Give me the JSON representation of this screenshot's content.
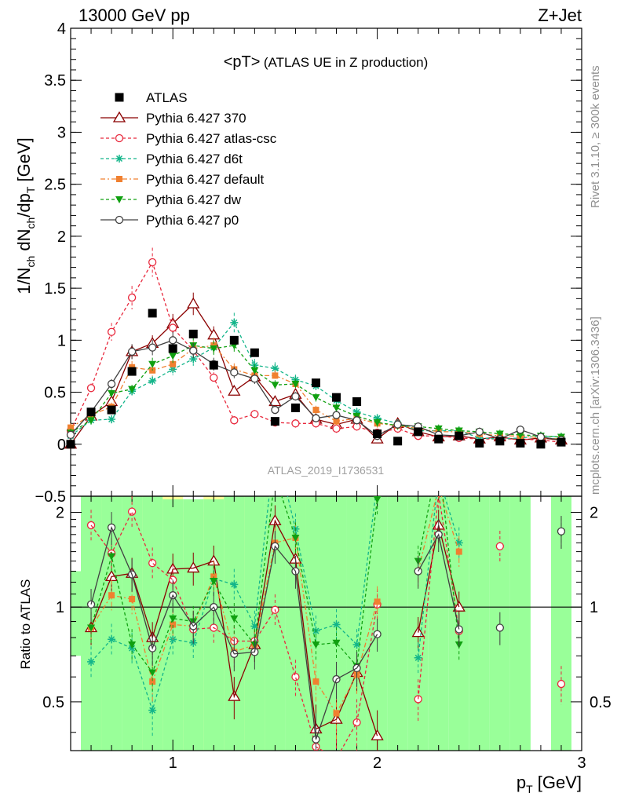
{
  "header": {
    "left": "13000 GeV pp",
    "right": "Z+Jet"
  },
  "chart_data": {
    "type": "line",
    "title": "<pT> (ATLAS UE in Z production)",
    "title_main": "<pT>",
    "title_sub": "(ATLAS UE in Z production)",
    "analysis_id": "ATLAS_2019_I1736531",
    "side_text_top": "Rivet 3.1.10, ≥ 300k events",
    "side_text_bottom": "mcplots.cern.ch [arXiv:1306.3436]",
    "xlabel": "p_T [GeV]",
    "xlim": [
      0.5,
      3.0
    ],
    "x_ticks": [
      "1",
      "2",
      "3"
    ],
    "main": {
      "ylabel": "1/N_ch dN_ch/dp_T [GeV]",
      "ylim": [
        -0.5,
        4.0
      ],
      "y_ticks": [
        "−0.5",
        "0",
        "0.5",
        "1",
        "1.5",
        "2",
        "2.5",
        "3",
        "3.5",
        "4"
      ]
    },
    "ratio": {
      "ylabel": "Ratio to ATLAS",
      "ylim": [
        0.35,
        2.25
      ],
      "y_ticks": [
        "0.5",
        "1",
        "2"
      ]
    },
    "x": [
      0.5,
      0.6,
      0.7,
      0.8,
      0.9,
      1.0,
      1.1,
      1.2,
      1.3,
      1.4,
      1.5,
      1.6,
      1.7,
      1.8,
      1.9,
      2.0,
      2.1,
      2.2,
      2.3,
      2.4,
      2.5,
      2.6,
      2.7,
      2.8,
      2.9
    ],
    "data": {
      "name": "ATLAS",
      "values": [
        0.0,
        0.31,
        0.33,
        0.7,
        1.26,
        0.92,
        1.06,
        0.76,
        1.0,
        0.88,
        0.22,
        0.35,
        0.59,
        0.45,
        0.41,
        0.1,
        0.03,
        0.12,
        0.05,
        0.08,
        0.01,
        0.03,
        0.01,
        0.0,
        0.02
      ]
    },
    "series": [
      {
        "name": "Pythia 6.427 370",
        "color": "#8b0000",
        "marker": "triangle-open",
        "dash": "",
        "values": [
          0.0,
          0.27,
          0.41,
          0.89,
          0.97,
          1.16,
          1.35,
          1.05,
          0.51,
          0.65,
          0.41,
          0.48,
          0.24,
          0.19,
          0.24,
          0.05,
          0.2,
          0.12,
          0.07,
          0.08,
          0.05,
          0.07,
          0.04,
          0.06,
          0.04
        ]
      },
      {
        "name": "Pythia 6.427 atlas-csc",
        "color": "#e8283c",
        "marker": "circle-open",
        "dash": "4,3",
        "values": [
          0.13,
          0.54,
          1.08,
          1.41,
          1.75,
          1.12,
          0.9,
          0.64,
          0.23,
          0.29,
          0.21,
          0.2,
          0.2,
          0.15,
          0.17,
          0.11,
          0.15,
          0.08,
          0.08,
          0.06,
          0.05,
          0.05,
          0.05,
          0.04,
          0.02
        ]
      },
      {
        "name": "Pythia 6.427 d6t",
        "color": "#13b58a",
        "marker": "star",
        "dash": "4,3",
        "values": [
          0.08,
          0.23,
          0.24,
          0.51,
          0.61,
          0.72,
          0.82,
          0.93,
          1.17,
          0.76,
          0.73,
          0.62,
          0.56,
          0.42,
          0.31,
          0.25,
          0.2,
          0.13,
          0.13,
          0.13,
          0.06,
          0.05,
          0.06,
          0.08,
          0.07
        ]
      },
      {
        "name": "Pythia 6.427 default",
        "color": "#f08030",
        "marker": "square",
        "dash": "6,3,2,3",
        "values": [
          0.16,
          0.28,
          0.36,
          0.74,
          0.71,
          0.77,
          0.92,
          0.95,
          0.72,
          0.66,
          0.66,
          0.58,
          0.33,
          0.22,
          0.25,
          0.2,
          0.18,
          0.15,
          0.12,
          0.12,
          0.1,
          0.08,
          0.08,
          0.06,
          0.05
        ]
      },
      {
        "name": "Pythia 6.427 dw",
        "color": "#10a010",
        "marker": "triangle-down",
        "dash": "4,3",
        "values": [
          0.11,
          0.23,
          0.49,
          0.53,
          0.77,
          0.85,
          0.95,
          0.92,
          0.95,
          0.71,
          0.57,
          0.58,
          0.45,
          0.35,
          0.27,
          0.21,
          0.18,
          0.17,
          0.15,
          0.13,
          0.12,
          0.1,
          0.09,
          0.08,
          0.07
        ]
      },
      {
        "name": "Pythia 6.427 p0",
        "color": "#404040",
        "marker": "circle-open",
        "dash": "",
        "values": [
          0.09,
          0.31,
          0.58,
          0.89,
          0.93,
          1.0,
          0.9,
          0.77,
          0.69,
          0.63,
          0.33,
          0.46,
          0.25,
          0.28,
          0.23,
          0.08,
          0.19,
          0.17,
          0.09,
          0.08,
          0.12,
          0.05,
          0.14,
          0.07,
          0.04
        ]
      }
    ],
    "ratio_series": [
      {
        "name": "Pythia 6.427 370",
        "values": [
          null,
          0.86,
          1.25,
          1.28,
          0.8,
          1.32,
          1.33,
          1.4,
          0.52,
          0.76,
          1.88,
          1.42,
          0.41,
          0.44,
          0.62,
          0.39,
          null,
          0.83,
          1.82,
          1.0,
          null,
          null,
          null,
          null,
          null
        ]
      },
      {
        "name": "Pythia 6.427 atlas-csc",
        "values": [
          null,
          1.82,
          1.48,
          2.01,
          1.38,
          1.22,
          0.85,
          0.86,
          0.78,
          0.78,
          0.98,
          0.6,
          0.36,
          0.33,
          0.43,
          1.02,
          null,
          0.51,
          2.3,
          0.84,
          null,
          1.56,
          null,
          null,
          0.57
        ]
      },
      {
        "name": "Pythia 6.427 d6t",
        "values": [
          null,
          0.67,
          0.79,
          0.74,
          0.47,
          0.79,
          0.77,
          1.23,
          1.18,
          0.87,
          3.3,
          1.77,
          0.84,
          0.88,
          0.76,
          2.5,
          null,
          0.69,
          2.6,
          1.6,
          null,
          null,
          null,
          null,
          null
        ]
      },
      {
        "name": "Pythia 6.427 default",
        "values": [
          null,
          0.86,
          1.09,
          1.06,
          0.58,
          0.88,
          0.87,
          1.25,
          0.72,
          0.76,
          1.6,
          1.66,
          0.58,
          0.46,
          0.61,
          1.04,
          null,
          1.3,
          2.4,
          1.5,
          null,
          null,
          null,
          null,
          null
        ]
      },
      {
        "name": "Pythia 6.427 dw",
        "values": [
          null,
          0.86,
          1.45,
          0.76,
          0.62,
          0.92,
          0.9,
          1.21,
          0.92,
          0.76,
          2.6,
          1.66,
          0.76,
          0.77,
          0.65,
          2.2,
          null,
          1.4,
          3.0,
          0.76,
          null,
          null,
          null,
          null,
          1.72
        ]
      },
      {
        "name": "Pythia 6.427 p0",
        "values": [
          null,
          1.02,
          1.79,
          1.27,
          0.74,
          1.09,
          0.87,
          1.0,
          0.71,
          0.72,
          1.56,
          1.3,
          0.38,
          0.59,
          0.64,
          0.82,
          null,
          1.3,
          1.7,
          0.85,
          null,
          0.86,
          null,
          null,
          1.74
        ]
      }
    ],
    "ratio_bands": {
      "green": [
        [
          0.7,
          1.3
        ],
        [
          0.0,
          3.0
        ],
        [
          0.0,
          3.0
        ],
        [
          0.2,
          2.3
        ],
        [
          0.25,
          2.4
        ],
        [
          0.3,
          2.2
        ],
        [
          0.3,
          2.2
        ],
        [
          0.3,
          2.2
        ],
        [
          0.3,
          2.4
        ],
        [
          0.3,
          2.4
        ],
        [
          0.0,
          3.0
        ],
        [
          0.0,
          3.0
        ],
        [
          0.0,
          3.0
        ],
        [
          0.0,
          3.0
        ],
        [
          0.0,
          3.0
        ],
        [
          0.0,
          3.0
        ],
        [
          0.0,
          3.0
        ],
        [
          0.0,
          3.0
        ],
        [
          0.0,
          3.0
        ],
        [
          0.0,
          3.0
        ],
        [
          0.0,
          3.0
        ],
        [
          0.0,
          3.0
        ],
        [
          0.0,
          3.0
        ],
        [
          null,
          null
        ],
        [
          0.0,
          3.0
        ]
      ],
      "yellow": [
        [
          null,
          null
        ],
        [
          null,
          null
        ],
        [
          0.0,
          3.0
        ],
        [
          null,
          null
        ],
        [
          0.3,
          2.6
        ],
        [
          0.3,
          2.6
        ],
        [
          0.2,
          2.0
        ],
        [
          0.2,
          2.6
        ],
        [
          0.2,
          2.6
        ],
        [
          0.2,
          3.0
        ],
        [
          null,
          null
        ],
        [
          0.2,
          3.0
        ],
        [
          0.2,
          3.0
        ],
        [
          null,
          null
        ],
        [
          null,
          null
        ],
        [
          null,
          null
        ],
        [
          null,
          null
        ],
        [
          null,
          null
        ],
        [
          null,
          null
        ],
        [
          null,
          null
        ],
        [
          null,
          null
        ],
        [
          null,
          null
        ],
        [
          null,
          null
        ],
        [
          null,
          null
        ],
        [
          null,
          null
        ]
      ]
    },
    "legend_position": "top-left"
  }
}
